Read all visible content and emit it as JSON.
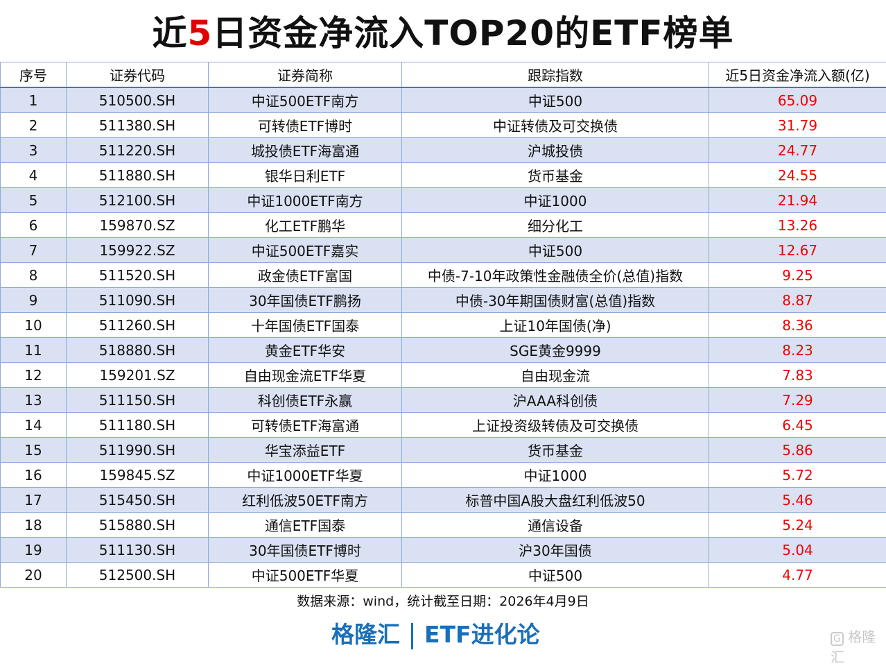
{
  "title": {
    "pre": "近",
    "highlight": "5",
    "post": "日资金净流入TOP20的ETF榜单"
  },
  "headers": [
    "序号",
    "证券代码",
    "证券简称",
    "跟踪指数",
    "近5日资金净流入额(亿)"
  ],
  "rows": [
    [
      "1",
      "510500.SH",
      "中证500ETF南方",
      "中证500",
      "65.09"
    ],
    [
      "2",
      "511380.SH",
      "可转债ETF博时",
      "中证转债及可交换债",
      "31.79"
    ],
    [
      "3",
      "511220.SH",
      "城投债ETF海富通",
      "沪城投债",
      "24.77"
    ],
    [
      "4",
      "511880.SH",
      "银华日利ETF",
      "货币基金",
      "24.55"
    ],
    [
      "5",
      "512100.SH",
      "中证1000ETF南方",
      "中证1000",
      "21.94"
    ],
    [
      "6",
      "159870.SZ",
      "化工ETF鹏华",
      "细分化工",
      "13.26"
    ],
    [
      "7",
      "159922.SZ",
      "中证500ETF嘉实",
      "中证500",
      "12.67"
    ],
    [
      "8",
      "511520.SH",
      "政金债ETF富国",
      "中债-7-10年政策性金融债全价(总值)指数",
      "9.25"
    ],
    [
      "9",
      "511090.SH",
      "30年国债ETF鹏扬",
      "中债-30年期国债财富(总值)指数",
      "8.87"
    ],
    [
      "10",
      "511260.SH",
      "十年国债ETF国泰",
      "上证10年国债(净)",
      "8.36"
    ],
    [
      "11",
      "518880.SH",
      "黄金ETF华安",
      "SGE黄金9999",
      "8.23"
    ],
    [
      "12",
      "159201.SZ",
      "自由现金流ETF华夏",
      "自由现金流",
      "7.83"
    ],
    [
      "13",
      "511150.SH",
      "科创债ETF永赢",
      "沪AAA科创债",
      "7.29"
    ],
    [
      "14",
      "511180.SH",
      "可转债ETF海富通",
      "上证投资级转债及可交换债",
      "6.45"
    ],
    [
      "15",
      "511990.SH",
      "华宝添益ETF",
      "货币基金",
      "5.86"
    ],
    [
      "16",
      "159845.SZ",
      "中证1000ETF华夏",
      "中证1000",
      "5.72"
    ],
    [
      "17",
      "515450.SH",
      "红利低波50ETF南方",
      "标普中国A股大盘红利低波50",
      "5.46"
    ],
    [
      "18",
      "515880.SH",
      "通信ETF国泰",
      "通信设备",
      "5.24"
    ],
    [
      "19",
      "511130.SH",
      "30年国债ETF博时",
      "沪30年国债",
      "5.04"
    ],
    [
      "20",
      "512500.SH",
      "中证500ETF华夏",
      "中证500",
      "4.77"
    ]
  ],
  "source": "数据来源：wind，统计截至日期：2026年4月9日",
  "brand": {
    "left": "格隆汇",
    "right": "ETF进化论"
  },
  "watermark": "格隆汇",
  "colors": {
    "accent": "#1a6fb8",
    "value": "#f00000",
    "stripe": "#d9e1f2"
  }
}
